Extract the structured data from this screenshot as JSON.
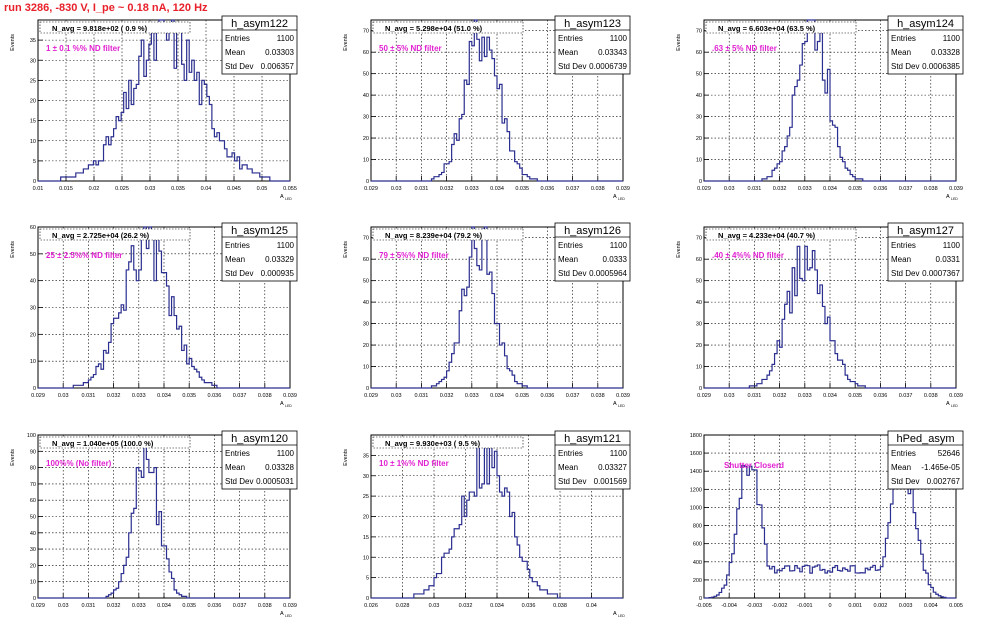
{
  "header": {
    "run_title": "run 3286,  -830 V, I_pe ~ 0.18 nA, 120 Hz"
  },
  "colors": {
    "histogram": "#2b2f8f",
    "annotation": "#e020d0",
    "title": "#e8202a",
    "grid": "#000000"
  },
  "chart_data": [
    {
      "type": "histogram",
      "name": "h_asym122",
      "ylabel": "Events",
      "xlabel": "A",
      "xlim": [
        0.01,
        0.055
      ],
      "ylim": [
        0,
        40
      ],
      "xticks": [
        "0.01",
        "0.015",
        "0.02",
        "0.025",
        "0.03",
        "0.035",
        "0.04",
        "0.045",
        "0.05",
        "0.055"
      ],
      "yticks": [
        "0",
        "5",
        "10",
        "15",
        "20",
        "25",
        "30",
        "35"
      ],
      "header": "N_avg = 9.818e+02 ( 0.9 %)",
      "note": "1 ± 0.1 %% ND filter",
      "stats": {
        "entries": "1100",
        "mean": "0.03303",
        "std": "0.006357"
      },
      "grid": true,
      "mean_val": 0.03303,
      "sigma": 0.006357,
      "peak": 37
    },
    {
      "type": "histogram",
      "name": "h_asym123",
      "ylabel": "Events",
      "xlabel": "A",
      "xlim": [
        0.029,
        0.039
      ],
      "ylim": [
        0,
        75
      ],
      "xticks": [
        "0.029",
        "0.03",
        "0.031",
        "0.032",
        "0.033",
        "0.034",
        "0.035",
        "0.036",
        "0.037",
        "0.038",
        "0.039"
      ],
      "yticks": [
        "0",
        "10",
        "20",
        "30",
        "40",
        "50",
        "60",
        "70"
      ],
      "header": "N_avg = 5.298e+04 (51.0 %)",
      "note": "50 ± 5% ND filter",
      "stats": {
        "entries": "1100",
        "mean": "0.03343",
        "std": "0.0006739"
      },
      "grid": true,
      "mean_val": 0.03343,
      "sigma": 0.0006739,
      "peak": 72
    },
    {
      "type": "histogram",
      "name": "h_asym124",
      "ylabel": "Events",
      "xlabel": "A",
      "xlim": [
        0.029,
        0.039
      ],
      "ylim": [
        0,
        75
      ],
      "xticks": [
        "0.029",
        "0.03",
        "0.031",
        "0.032",
        "0.033",
        "0.034",
        "0.035",
        "0.036",
        "0.037",
        "0.038",
        "0.039"
      ],
      "yticks": [
        "0",
        "10",
        "20",
        "30",
        "40",
        "50",
        "60",
        "70"
      ],
      "header": "N_avg = 6.603e+04 (63.5 %)",
      "note": ".63 ± 5% ND filter",
      "stats": {
        "entries": "1100",
        "mean": "0.03328",
        "std": "0.0006385"
      },
      "grid": true,
      "mean_val": 0.03328,
      "sigma": 0.0006385,
      "peak": 76
    },
    {
      "type": "histogram",
      "name": "h_asym125",
      "ylabel": "Events",
      "xlabel": "A",
      "xlim": [
        0.029,
        0.039
      ],
      "ylim": [
        0,
        60
      ],
      "xticks": [
        "0.029",
        "0.03",
        "0.031",
        "0.032",
        "0.033",
        "0.034",
        "0.035",
        "0.036",
        "0.037",
        "0.038",
        "0.039"
      ],
      "yticks": [
        "0",
        "10",
        "20",
        "30",
        "40",
        "50",
        "60"
      ],
      "header": "N_avg = 2.725e+04 (26.2 %)",
      "note": "25 ± 2.5%% ND filter",
      "stats": {
        "entries": "1100",
        "mean": "0.03329",
        "std": "0.000935"
      },
      "grid": true,
      "mean_val": 0.03329,
      "sigma": 0.000935,
      "peak": 56
    },
    {
      "type": "histogram",
      "name": "h_asym126",
      "ylabel": "Events",
      "xlabel": "A",
      "xlim": [
        0.029,
        0.039
      ],
      "ylim": [
        0,
        75
      ],
      "xticks": [
        "0.029",
        "0.03",
        "0.031",
        "0.032",
        "0.033",
        "0.034",
        "0.035",
        "0.036",
        "0.037",
        "0.038",
        "0.039"
      ],
      "yticks": [
        "0",
        "10",
        "20",
        "30",
        "40",
        "50",
        "60",
        "70"
      ],
      "header": "N_avg = 8.239e+04 (79.2 %)",
      "note": "79 ± 5%% ND filter",
      "stats": {
        "entries": "1100",
        "mean": "0.0333",
        "std": "0.0005964"
      },
      "grid": true,
      "mean_val": 0.0333,
      "sigma": 0.0005964,
      "peak": 71
    },
    {
      "type": "histogram",
      "name": "h_asym127",
      "ylabel": "Events",
      "xlabel": "A",
      "xlim": [
        0.029,
        0.039
      ],
      "ylim": [
        0,
        75
      ],
      "xticks": [
        "0.029",
        "0.03",
        "0.031",
        "0.032",
        "0.033",
        "0.034",
        "0.035",
        "0.036",
        "0.037",
        "0.038",
        "0.039"
      ],
      "yticks": [
        "0",
        "10",
        "20",
        "30",
        "40",
        "50",
        "60",
        "70"
      ],
      "header": "N_avg = 4.233e+04 (40.7 %)",
      "note": ".40 ± 4%% ND filter",
      "stats": {
        "entries": "1100",
        "mean": "0.0331",
        "std": "0.0007367"
      },
      "grid": true,
      "mean_val": 0.0331,
      "sigma": 0.0007367,
      "peak": 63
    },
    {
      "type": "histogram",
      "name": "h_asym120",
      "ylabel": "Events",
      "xlabel": "A",
      "xlim": [
        0.029,
        0.039
      ],
      "ylim": [
        0,
        100
      ],
      "xticks": [
        "0.029",
        "0.03",
        "0.031",
        "0.032",
        "0.033",
        "0.034",
        "0.035",
        "0.036",
        "0.037",
        "0.038",
        "0.039"
      ],
      "yticks": [
        "0",
        "10",
        "20",
        "30",
        "40",
        "50",
        "60",
        "70",
        "80",
        "90",
        "100"
      ],
      "header": "N_avg = 1.040e+05 (100.0 %)",
      "note": "100%% (No filter)",
      "stats": {
        "entries": "1100",
        "mean": "0.03328",
        "std": "0.0005031"
      },
      "grid": true,
      "mean_val": 0.03328,
      "sigma": 0.0005031,
      "peak": 93
    },
    {
      "type": "histogram",
      "name": "h_asym121",
      "ylabel": "Events",
      "xlabel": "A",
      "xlim": [
        0.026,
        0.042
      ],
      "ylim": [
        0,
        40
      ],
      "xticks": [
        "0.026",
        "0.028",
        "0.03",
        "0.032",
        "0.034",
        "0.036",
        "0.038",
        "0.04"
      ],
      "yticks": [
        "0",
        "5",
        "10",
        "15",
        "20",
        "25",
        "30",
        "35"
      ],
      "header": "N_avg = 9.930e+03 ( 9.5 %)",
      "note": "10 ± 1%% ND filter",
      "stats": {
        "entries": "1100",
        "mean": "0.03327",
        "std": "0.001569"
      },
      "grid": true,
      "mean_val": 0.03327,
      "sigma": 0.001569,
      "peak": 36
    },
    {
      "type": "histogram",
      "name": "hPed_asym",
      "ylabel": "",
      "xlabel": "",
      "xlim": [
        -0.005,
        0.005
      ],
      "ylim": [
        0,
        1800
      ],
      "xticks": [
        "-0.005",
        "-0.004",
        "-0.003",
        "-0.002",
        "-0.001",
        "0",
        "0.001",
        "0.002",
        "0.003",
        "0.004",
        "0.005"
      ],
      "yticks": [
        "0",
        "200",
        "400",
        "600",
        "800",
        "1000",
        "1200",
        "1400",
        "1600",
        "1800"
      ],
      "header": "",
      "note": "Shutter Closerd",
      "stats": {
        "entries": "52646",
        "mean": "-1.465e-05",
        "std": "0.002767"
      },
      "grid": true,
      "bimodal": true
    }
  ]
}
